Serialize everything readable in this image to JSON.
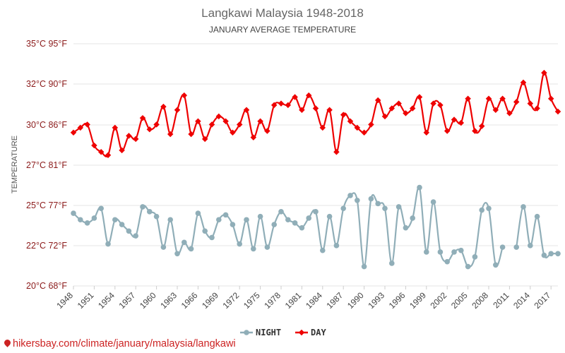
{
  "chart_data": {
    "type": "line",
    "title": "Langkawi Malaysia 1948-2018",
    "subtitle": "JANUARY AVERAGE TEMPERATURE",
    "ylabel": "TEMPERATURE",
    "ylim": [
      20,
      35
    ],
    "yticks": [
      "20°C 68°F",
      "22°C 72°F",
      "25°C 77°F",
      "27°C 81°F",
      "30°C 86°F",
      "32°C 90°F",
      "35°C 95°F"
    ],
    "xlim": [
      1948,
      2018
    ],
    "xticks": [
      "1948",
      "1951",
      "1954",
      "1957",
      "1960",
      "1963",
      "1966",
      "1969",
      "1972",
      "1975",
      "1978",
      "1981",
      "1984",
      "1987",
      "1990",
      "1993",
      "1996",
      "1999",
      "2002",
      "2005",
      "2008",
      "2011",
      "2014",
      "2017"
    ],
    "legend_position": "bottom",
    "x": [
      1948,
      1949,
      1950,
      1951,
      1952,
      1953,
      1954,
      1955,
      1956,
      1957,
      1958,
      1959,
      1960,
      1961,
      1962,
      1963,
      1964,
      1965,
      1966,
      1967,
      1968,
      1969,
      1970,
      1971,
      1972,
      1973,
      1974,
      1975,
      1976,
      1977,
      1978,
      1979,
      1980,
      1981,
      1982,
      1983,
      1984,
      1985,
      1986,
      1987,
      1988,
      1989,
      1990,
      1991,
      1992,
      1993,
      1994,
      1995,
      1996,
      1997,
      1998,
      1999,
      2000,
      2001,
      2002,
      2003,
      2004,
      2005,
      2006,
      2007,
      2008,
      2009,
      2010,
      2011,
      2012,
      2013,
      2014,
      2015,
      2016,
      2017,
      2018
    ],
    "series": [
      {
        "name": "NIGHT",
        "color": "#90aeb8",
        "values": [
          24.5,
          24.1,
          23.9,
          24.2,
          24.8,
          22.6,
          24.1,
          23.8,
          23.4,
          23.1,
          24.9,
          24.6,
          24.3,
          22.4,
          24.1,
          22.0,
          22.7,
          22.3,
          24.5,
          23.4,
          23.0,
          24.1,
          24.4,
          23.8,
          22.6,
          24.1,
          22.3,
          24.3,
          22.4,
          23.8,
          24.6,
          24.1,
          23.9,
          23.6,
          24.2,
          24.6,
          22.2,
          24.3,
          22.5,
          24.8,
          25.6,
          25.3,
          21.2,
          25.4,
          25.1,
          24.8,
          21.4,
          24.9,
          23.6,
          24.2,
          26.1,
          22.1,
          25.2,
          22.1,
          21.5,
          22.1,
          22.2,
          21.2,
          21.8,
          24.7,
          24.8,
          21.3,
          22.4,
          null,
          22.4,
          24.9,
          22.5,
          24.3,
          21.9,
          22.0,
          22.0
        ]
      },
      {
        "name": "DAY",
        "color": "#ee0000",
        "values": [
          29.5,
          29.8,
          30.0,
          28.7,
          28.3,
          28.1,
          29.8,
          28.4,
          29.3,
          29.1,
          30.4,
          29.7,
          30.0,
          31.1,
          29.4,
          30.9,
          31.8,
          29.4,
          30.2,
          29.1,
          30.0,
          30.5,
          30.2,
          29.5,
          30.0,
          30.9,
          29.2,
          30.2,
          29.6,
          31.2,
          31.3,
          31.2,
          31.7,
          30.9,
          31.8,
          31.0,
          29.8,
          30.9,
          28.3,
          30.6,
          30.2,
          29.8,
          29.5,
          30.0,
          31.5,
          30.5,
          31.0,
          31.3,
          30.7,
          31.0,
          31.7,
          29.5,
          31.3,
          31.2,
          29.6,
          30.3,
          30.1,
          31.6,
          29.6,
          29.9,
          31.6,
          30.9,
          31.6,
          30.7,
          31.4,
          32.6,
          31.3,
          31.0,
          33.2,
          31.6,
          30.8
        ]
      }
    ]
  },
  "footer": {
    "icon": "map-pin-icon",
    "text": "hikersbay.com/climate/january/malaysia/langkawi"
  }
}
